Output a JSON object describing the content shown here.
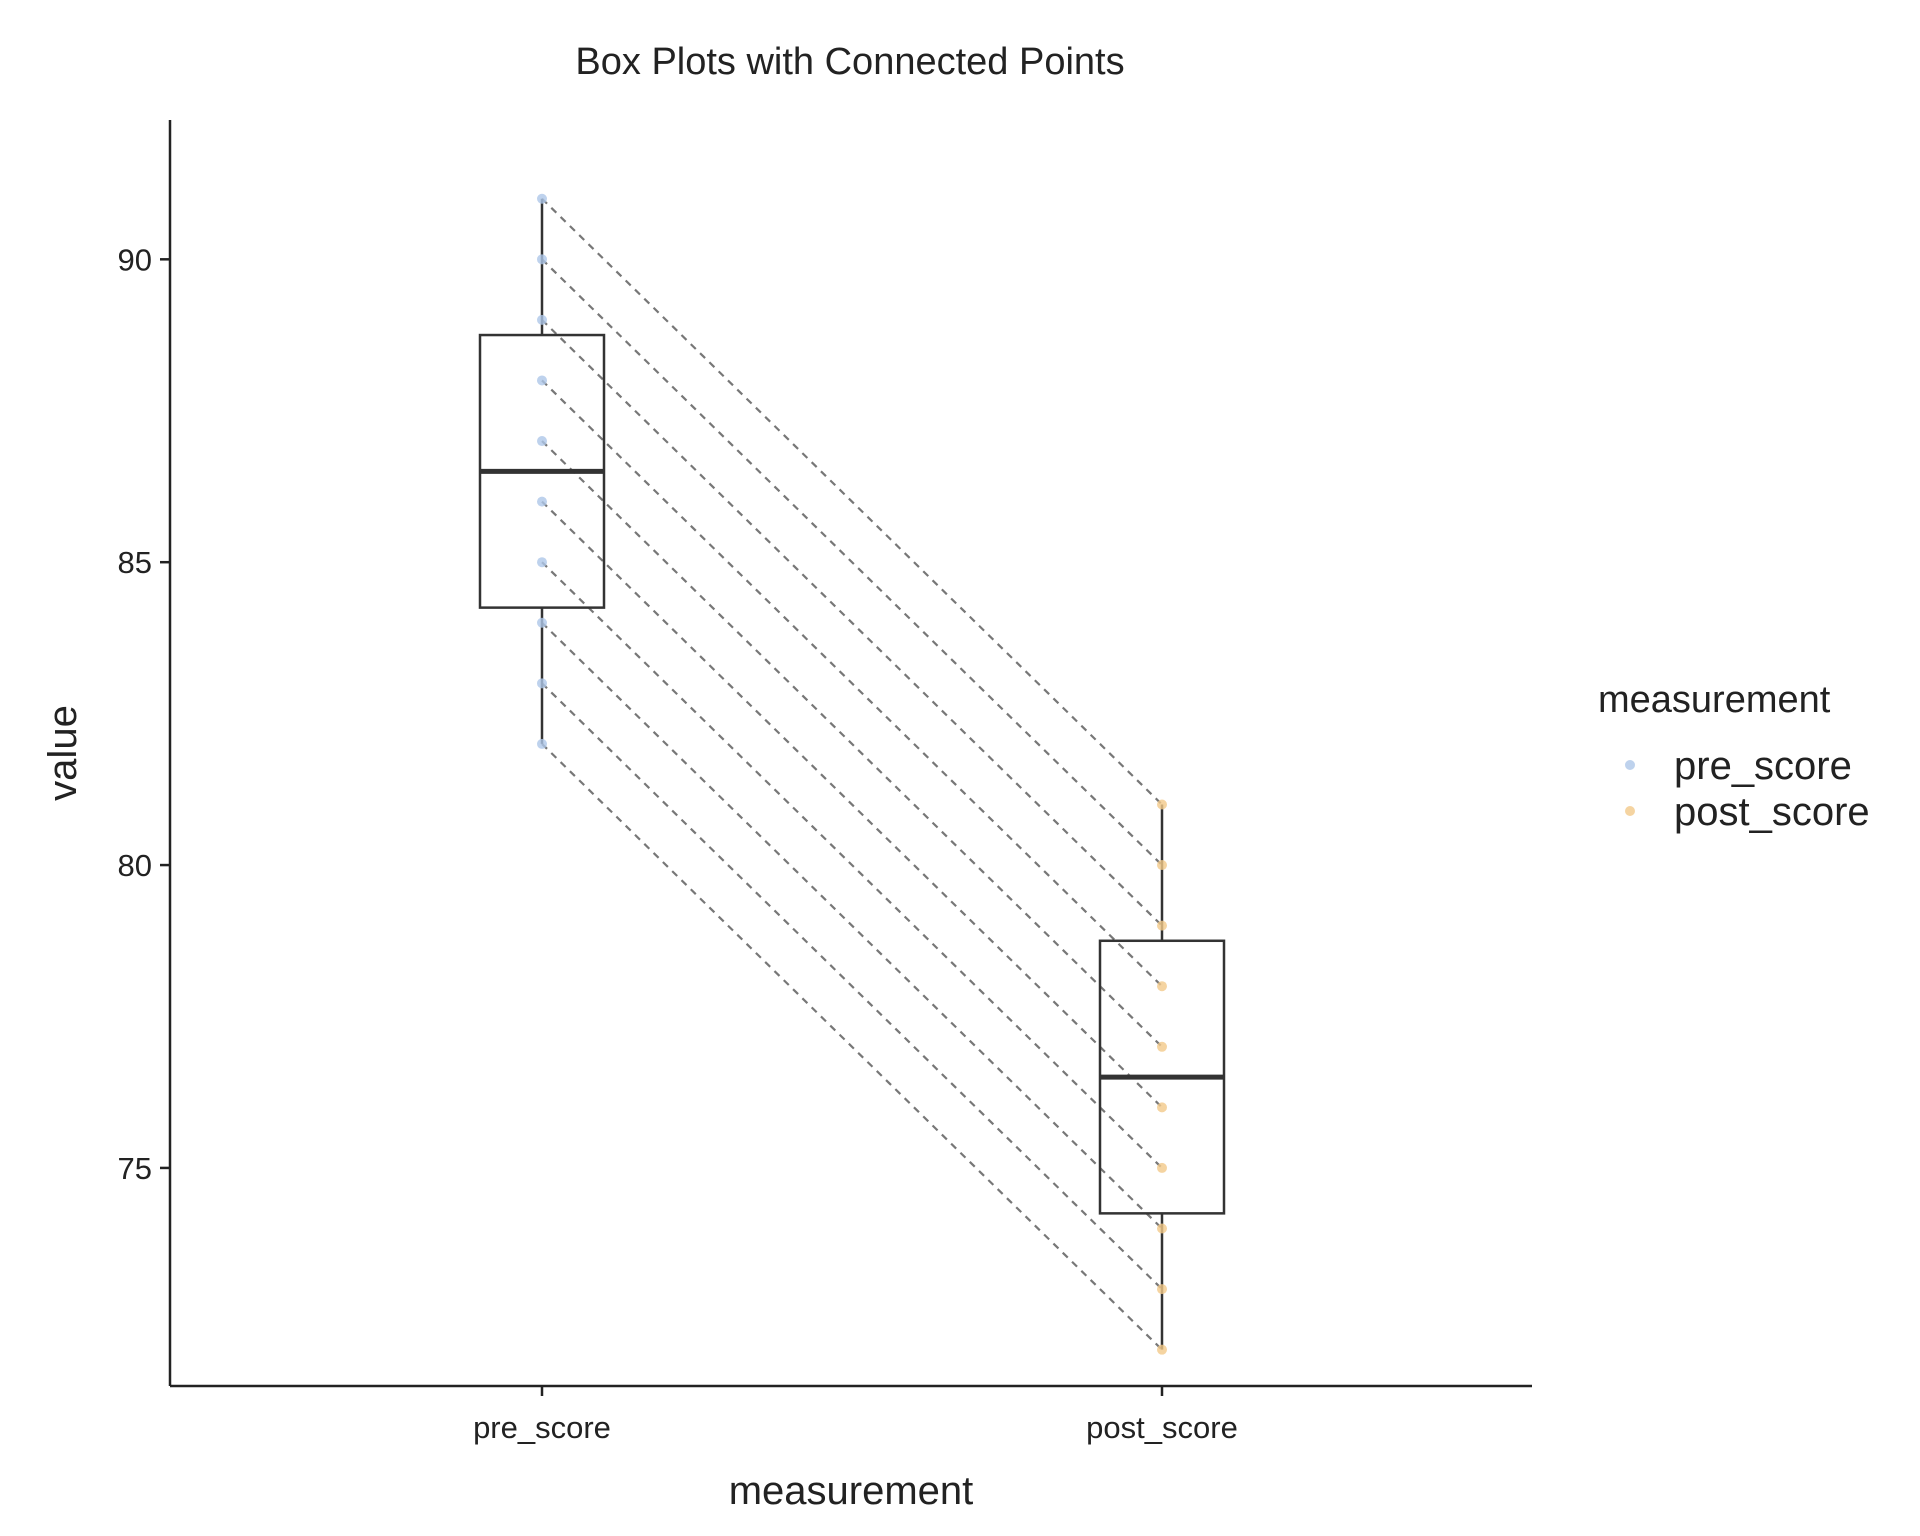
{
  "chart_data": {
    "type": "box",
    "title": "Box Plots with Connected Points",
    "xlabel": "measurement",
    "ylabel": "value",
    "categories": [
      "pre_score",
      "post_score"
    ],
    "ylim": [
      71.4,
      92.3
    ],
    "yticks": [
      75,
      80,
      85,
      90
    ],
    "grid": false,
    "legend": {
      "title": "measurement",
      "position": "right",
      "items": [
        {
          "label": "pre_score",
          "color": "#AEC7E8"
        },
        {
          "label": "post_score",
          "color": "#F2C98A"
        }
      ]
    },
    "boxes": [
      {
        "name": "pre_score",
        "min": 82,
        "q1": 84.25,
        "median": 86.5,
        "q3": 88.75,
        "max": 91
      },
      {
        "name": "post_score",
        "min": 72,
        "q1": 74.25,
        "median": 76.5,
        "q3": 78.75,
        "max": 81
      }
    ],
    "series": [
      {
        "name": "pre_score",
        "values": [
          82,
          83,
          84,
          85,
          86,
          87,
          88,
          89,
          90,
          91
        ]
      },
      {
        "name": "post_score",
        "values": [
          72,
          73,
          74,
          75,
          76,
          77,
          78,
          79,
          80,
          81
        ]
      }
    ],
    "connector_color": "#777777",
    "box_color": "#333333"
  }
}
